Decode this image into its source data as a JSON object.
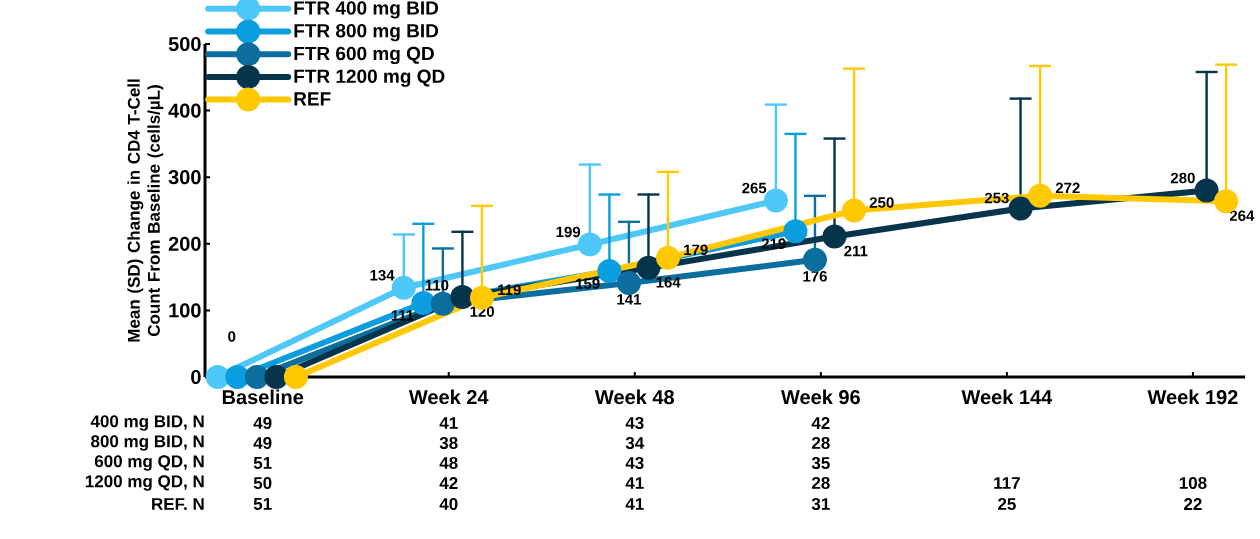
{
  "chart_data": {
    "type": "line",
    "ylabel": "Mean (SD) Change in CD4 T-Cell Count From Baseline (cells/µL)",
    "categories": [
      "Baseline",
      "Week 24",
      "Week 48",
      "Week 96",
      "Week 144",
      "Week 192"
    ],
    "ylim": [
      0,
      500
    ],
    "yticks": [
      0,
      100,
      200,
      300,
      400,
      500
    ],
    "marker": "circle",
    "legend": "top left",
    "grid": false,
    "series": [
      {
        "name": "FTR 400 mg BID",
        "color": "#4dc8f8",
        "values": [
          0,
          134,
          199,
          265,
          null,
          null
        ],
        "value_labels": [
          "0",
          "134",
          "199",
          "265",
          null,
          null
        ],
        "errors": [
          null,
          [
            134,
            214
          ],
          [
            199,
            319
          ],
          [
            265,
            409
          ],
          null,
          null
        ]
      },
      {
        "name": "FTR 800 mg BID",
        "color": "#0a9ee0",
        "values": [
          0,
          111,
          159,
          219,
          null,
          null
        ],
        "value_labels": [
          null,
          "111",
          "159",
          "219",
          null,
          null
        ],
        "errors": [
          null,
          [
            111,
            230
          ],
          [
            159,
            274
          ],
          [
            219,
            365
          ],
          null,
          null
        ]
      },
      {
        "name": "FTR 600 mg QD",
        "color": "#0b6e9e",
        "values": [
          0,
          110,
          141,
          176,
          null,
          null
        ],
        "value_labels": [
          null,
          "110",
          "141",
          "176",
          null,
          null
        ],
        "errors": [
          null,
          [
            110,
            193
          ],
          [
            141,
            233
          ],
          [
            176,
            272
          ],
          null,
          null
        ]
      },
      {
        "name": "FTR 1200 mg QD",
        "color": "#06344a",
        "values": [
          0,
          120,
          164,
          211,
          253,
          280
        ],
        "value_labels": [
          null,
          "120",
          "164",
          "211",
          "253",
          "280"
        ],
        "errors": [
          null,
          [
            120,
            218
          ],
          [
            164,
            274
          ],
          [
            211,
            358
          ],
          [
            253,
            418
          ],
          [
            280,
            458
          ]
        ]
      },
      {
        "name": "REF",
        "color": "#ffc800",
        "values": [
          0,
          119,
          179,
          250,
          272,
          264
        ],
        "value_labels": [
          null,
          "119",
          "179",
          "250",
          "272",
          "264"
        ],
        "errors": [
          null,
          [
            119,
            257
          ],
          [
            179,
            308
          ],
          [
            250,
            463
          ],
          [
            272,
            467
          ],
          [
            264,
            469
          ]
        ]
      }
    ],
    "annotations": [
      "400 mg BID, N",
      "49",
      "41",
      "43",
      "42",
      "800 mg BID, N",
      "49",
      "38",
      "34",
      "28",
      "600 mg QD, N",
      "51",
      "48",
      "43",
      "35",
      "1200 mg QD, N",
      "50",
      "42",
      "41",
      "28",
      "117",
      "108",
      "REF. N",
      "51",
      "40",
      "41",
      "31",
      "25",
      "22"
    ]
  }
}
